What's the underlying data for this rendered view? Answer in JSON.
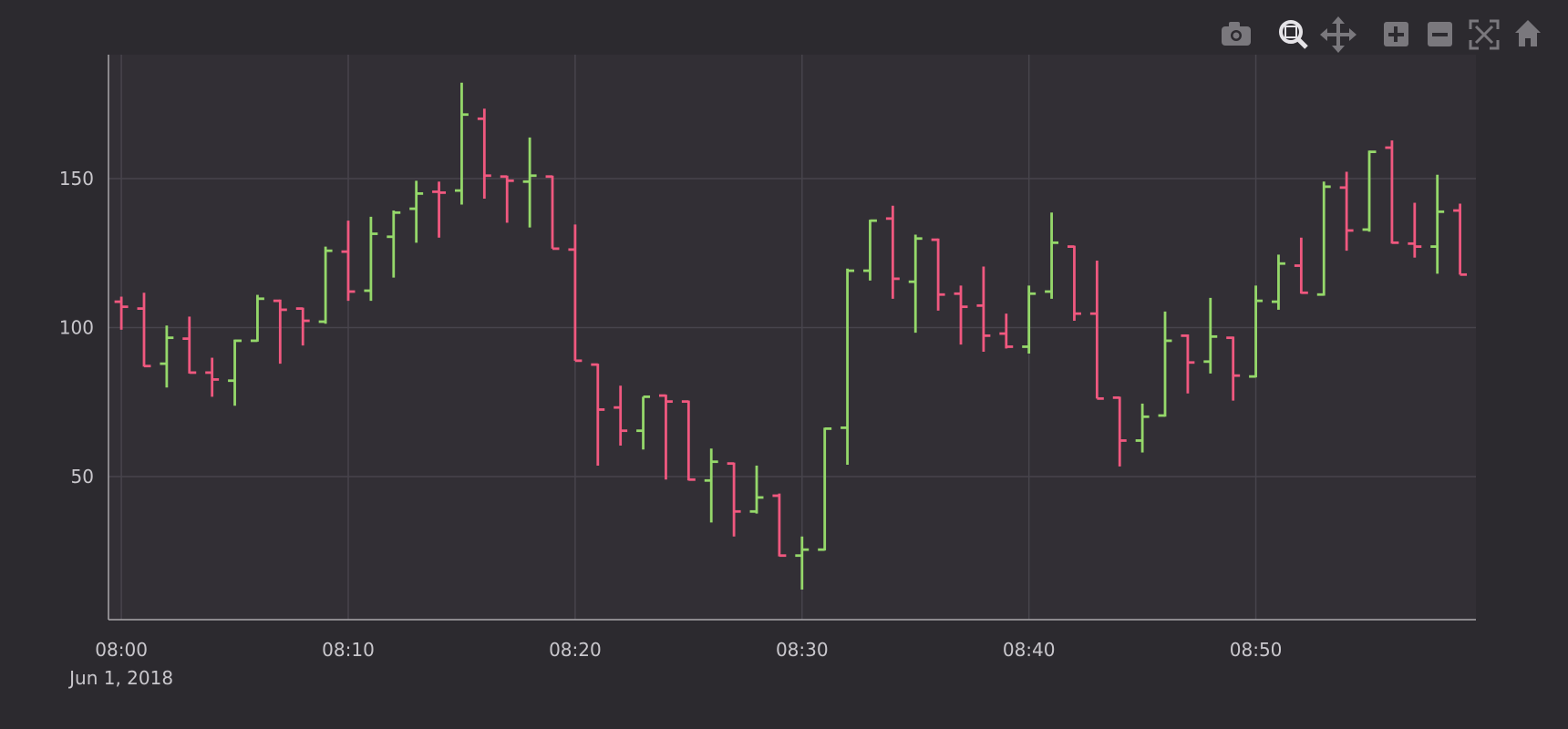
{
  "chart_data": {
    "type": "ohlc",
    "x": [
      "2018-06-01 08:00",
      "2018-06-01 08:01",
      "2018-06-01 08:02",
      "2018-06-01 08:03",
      "2018-06-01 08:04",
      "2018-06-01 08:05",
      "2018-06-01 08:06",
      "2018-06-01 08:07",
      "2018-06-01 08:08",
      "2018-06-01 08:09",
      "2018-06-01 08:10",
      "2018-06-01 08:11",
      "2018-06-01 08:12",
      "2018-06-01 08:13",
      "2018-06-01 08:14",
      "2018-06-01 08:15",
      "2018-06-01 08:16",
      "2018-06-01 08:17",
      "2018-06-01 08:18",
      "2018-06-01 08:19",
      "2018-06-01 08:20",
      "2018-06-01 08:21",
      "2018-06-01 08:22",
      "2018-06-01 08:23",
      "2018-06-01 08:24",
      "2018-06-01 08:25",
      "2018-06-01 08:26",
      "2018-06-01 08:27",
      "2018-06-01 08:28",
      "2018-06-01 08:29",
      "2018-06-01 08:30",
      "2018-06-01 08:31",
      "2018-06-01 08:32",
      "2018-06-01 08:33",
      "2018-06-01 08:34",
      "2018-06-01 08:35",
      "2018-06-01 08:36",
      "2018-06-01 08:37",
      "2018-06-01 08:38",
      "2018-06-01 08:39",
      "2018-06-01 08:40",
      "2018-06-01 08:41",
      "2018-06-01 08:42",
      "2018-06-01 08:43",
      "2018-06-01 08:44",
      "2018-06-01 08:45",
      "2018-06-01 08:46",
      "2018-06-01 08:47",
      "2018-06-01 08:48",
      "2018-06-01 08:49",
      "2018-06-01 08:50",
      "2018-06-01 08:51",
      "2018-06-01 08:52",
      "2018-06-01 08:53",
      "2018-06-01 08:54",
      "2018-06-01 08:55",
      "2018-06-01 08:56",
      "2018-06-01 08:57",
      "2018-06-01 08:58",
      "2018-06-01 08:59"
    ],
    "open": [
      108.7,
      106.4,
      87.9,
      96.3,
      84.9,
      82.2,
      95.6,
      109,
      106.4,
      102,
      125.5,
      112.4,
      130.5,
      139.9,
      145.6,
      146,
      170.1,
      150.7,
      149,
      150.7,
      126.2,
      87.6,
      73.2,
      65.4,
      77.2,
      75.2,
      48.7,
      54.4,
      38.3,
      43.6,
      23.5,
      25.5,
      66.4,
      119.1,
      136.6,
      115.4,
      129.5,
      111.4,
      107.4,
      98,
      93.6,
      112.1,
      127.2,
      104.7,
      76.5,
      62.1,
      70.5,
      97.3,
      88.6,
      96.6,
      83.6,
      108.7,
      120.8,
      111.1,
      147,
      132.9,
      160.4,
      128.2,
      127.2,
      139.3
    ],
    "high": [
      110.4,
      111.7,
      100.7,
      103.7,
      89.9,
      96,
      111,
      109.4,
      106.7,
      127.2,
      135.9,
      137.2,
      139.3,
      149.3,
      149,
      182.2,
      173.5,
      151,
      163.8,
      151,
      134.6,
      87.9,
      80.5,
      76.8,
      77.5,
      75.5,
      59.4,
      54.7,
      53.7,
      44.3,
      29.9,
      66.4,
      119.8,
      136.2,
      140.9,
      131.2,
      129.9,
      114.1,
      120.5,
      104.7,
      114.1,
      138.6,
      127.5,
      122.5,
      76.8,
      74.5,
      105.4,
      97.7,
      110,
      97,
      114.1,
      124.5,
      130.2,
      149,
      152.3,
      159.4,
      162.8,
      141.9,
      151.3,
      141.6
    ],
    "low": [
      99.3,
      86.9,
      79.9,
      84.6,
      76.8,
      73.8,
      95.3,
      87.9,
      94,
      101.3,
      109,
      109,
      116.8,
      128.5,
      130.2,
      141.3,
      143.3,
      135.2,
      133.6,
      126.5,
      88.9,
      53.7,
      60.4,
      59.1,
      49,
      48.7,
      34.6,
      29.9,
      37.6,
      23.2,
      12.1,
      25.2,
      54,
      115.8,
      109.7,
      98.3,
      105.7,
      94.3,
      91.9,
      93,
      91.3,
      109.7,
      102.3,
      76.2,
      53.4,
      58.1,
      70.1,
      77.9,
      84.6,
      75.5,
      83.3,
      106,
      111.4,
      110.7,
      125.8,
      132.2,
      128.2,
      123.5,
      118.1,
      117.8
    ],
    "close": [
      107,
      87.1,
      96.6,
      84.9,
      82.6,
      95.6,
      109.7,
      106,
      102.3,
      125.8,
      112.1,
      131.5,
      138.6,
      145,
      145.3,
      171.5,
      151,
      149.3,
      151,
      126.5,
      88.9,
      72.5,
      65.4,
      76.8,
      75.2,
      49,
      55,
      38.3,
      43,
      23.5,
      25.5,
      66.1,
      119.1,
      135.9,
      116.4,
      129.9,
      111.1,
      107,
      97.3,
      93.6,
      111.4,
      128.5,
      104.7,
      76.2,
      62.1,
      70.1,
      95.6,
      88.3,
      97,
      83.9,
      109,
      121.5,
      111.7,
      147.3,
      132.6,
      159,
      128.5,
      127.2,
      138.9,
      117.8
    ],
    "increasing_color": "#95d86a",
    "decreasing_color": "#f0587f",
    "xlim": [
      "2018-06-01 07:59:26",
      "2018-06-01 08:59:42"
    ],
    "xticks": [
      {
        "value": "2018-06-01 08:00",
        "label": "08:00\nJun 1, 2018"
      },
      {
        "value": "2018-06-01 08:10",
        "label": "08:10"
      },
      {
        "value": "2018-06-01 08:20",
        "label": "08:20"
      },
      {
        "value": "2018-06-01 08:30",
        "label": "08:30"
      },
      {
        "value": "2018-06-01 08:40",
        "label": "08:40"
      },
      {
        "value": "2018-06-01 08:50",
        "label": "08:50"
      }
    ],
    "ylim": [
      2,
      191.6
    ],
    "yticks": [
      50,
      100,
      150
    ],
    "grid": true
  }
}
